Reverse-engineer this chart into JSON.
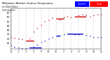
{
  "background_color": "#ffffff",
  "grid_color": "#bbbbbb",
  "temp_color": "#cc0000",
  "dew_color": "#0000cc",
  "ylim": [
    18,
    65
  ],
  "xlim": [
    0,
    24
  ],
  "title_text1": "Milwaukee Weather Outdoor Temperature",
  "title_text2": "vs Dew Point",
  "title_text3": "(24 Hours)",
  "legend_label_dew": "Dew Pt",
  "legend_label_temp": "Temp",
  "legend_box_blue": "#0000ff",
  "legend_box_red": "#ff0000",
  "hours": [
    0,
    1,
    2,
    3,
    4,
    5,
    6,
    7,
    8,
    9,
    10,
    11,
    12,
    13,
    14,
    15,
    16,
    17,
    18,
    19,
    20,
    21,
    22,
    23,
    24
  ],
  "temp_values": [
    32,
    31,
    30,
    29,
    28,
    30,
    38,
    42,
    46,
    50,
    52,
    54,
    53,
    52,
    55,
    56,
    55,
    56,
    57,
    58,
    57,
    56,
    57,
    58,
    58
  ],
  "dew_values": [
    22,
    21,
    20,
    19,
    19,
    20,
    21,
    23,
    26,
    28,
    30,
    32,
    33,
    34,
    35,
    36,
    36,
    35,
    35,
    36,
    34,
    33,
    32,
    32,
    32
  ],
  "yticks": [
    25,
    30,
    35,
    40,
    45,
    50,
    55,
    60
  ],
  "ytick_labels": [
    "25",
    "30",
    "35",
    "40",
    "45",
    "50",
    "55",
    "60"
  ],
  "xtick_pos": [
    0,
    2,
    4,
    6,
    8,
    10,
    12,
    14,
    16,
    18,
    20,
    22,
    24
  ],
  "xtick_labels": [
    "12",
    "2",
    "4",
    "6",
    "8",
    "10",
    "12",
    "2",
    "4",
    "6",
    "8",
    "10",
    "12"
  ],
  "vgrid_pos": [
    0,
    2,
    4,
    6,
    8,
    10,
    12,
    14,
    16,
    18,
    20,
    22,
    24
  ],
  "temp_hlines": [
    [
      4,
      6,
      28
    ],
    [
      12,
      14,
      53
    ],
    [
      17,
      20,
      56
    ]
  ],
  "dew_hlines": [
    [
      5,
      8,
      20
    ],
    [
      12,
      13,
      33
    ],
    [
      15,
      19,
      36
    ]
  ]
}
